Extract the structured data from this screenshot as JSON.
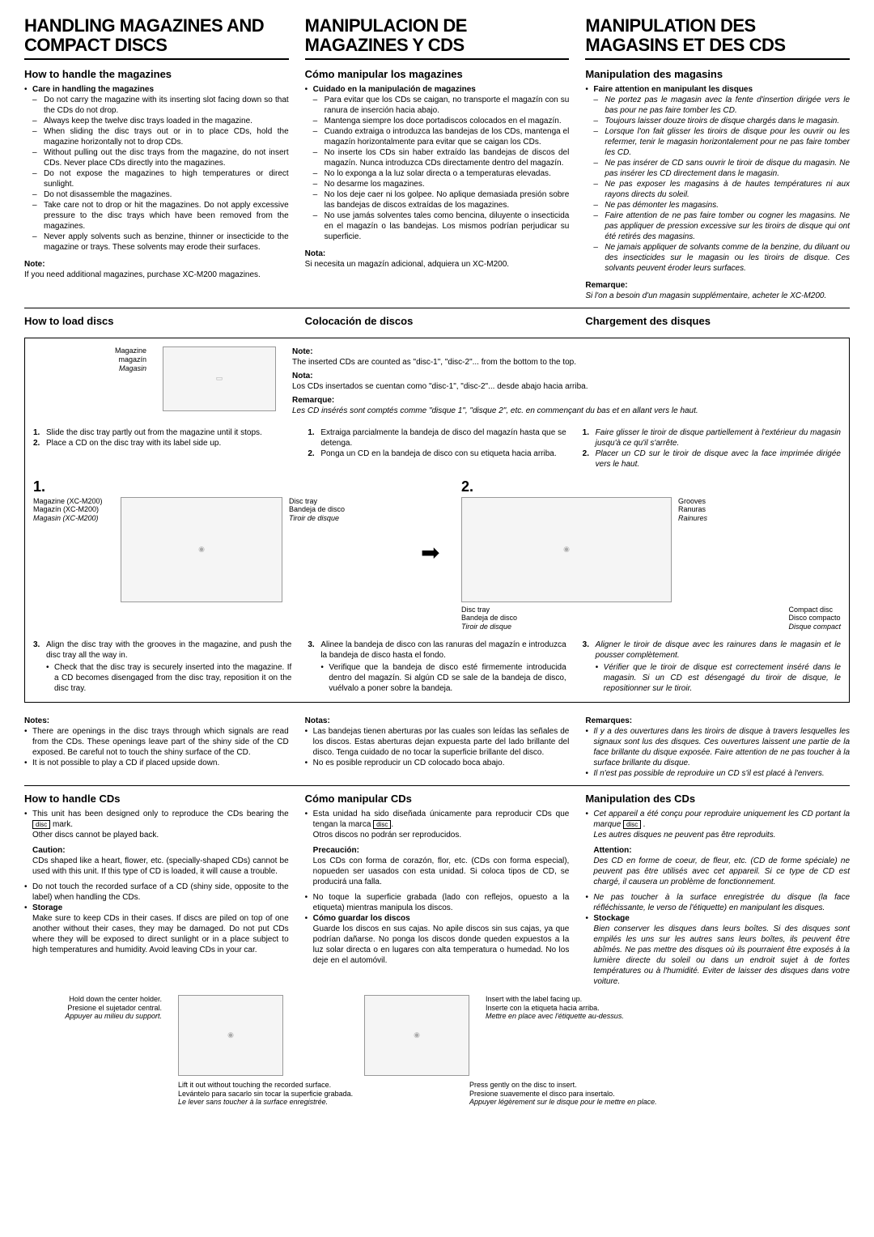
{
  "colors": {
    "text": "#000000",
    "bg": "#ffffff",
    "rule": "#000000"
  },
  "en": {
    "title": "HANDLING MAGAZINES AND COMPACT DISCS",
    "handle_mag_title": "How to handle the magazines",
    "care_label": "Care in handling the magazines",
    "care_items": [
      "Do not carry the magazine with its inserting slot facing down so that the CDs do not drop.",
      "Always keep the twelve disc trays loaded in the magazine.",
      "When sliding the disc trays out or in to place CDs, hold the magazine horizontally not to drop CDs.",
      "Without pulling out the disc trays from the magazine, do not insert CDs. Never place CDs directly into the magazines.",
      "Do not expose the magazines to high temperatures or direct sunlight.",
      "Do not disassemble the magazines.",
      "Take care not to drop or hit the magazines. Do not apply excessive pressure to the disc trays which have been removed from the magazines.",
      "Never apply solvents such as benzine, thinner or insecticide to the magazine or trays. These solvents may erode their surfaces."
    ],
    "note_label": "Note:",
    "note_text": "If you need additional magazines, purchase XC-M200 magazines.",
    "load_title": "How to load discs",
    "insert_note": "The inserted CDs are counted as \"disc-1\", \"disc-2\"... from the bottom to the top.",
    "mag_label": "Magazine",
    "step1": "Slide the disc tray partly out from the magazine until it stops.",
    "step2": "Place a CD on the disc tray with its label side up.",
    "disc_tray": "Disc tray",
    "magazine_xc": "Magazine (XC-M200)",
    "grooves": "Grooves",
    "compact_disc": "Compact disc",
    "step3": "Align the disc tray with the grooves in the magazine, and push the disc tray all the way in.",
    "step3_sub": "Check that the disc tray is securely inserted into the magazine. If a CD becomes disengaged from the disc tray, reposition it on the disc tray.",
    "notes_label": "Notes:",
    "notes_items": [
      "There are openings in the disc trays through which signals are read from the CDs. These openings leave part of the shiny side of the CD exposed. Be careful not to touch the shiny surface of the CD.",
      "It is not possible to play a CD if placed upside down."
    ],
    "handle_cd_title": "How to handle CDs",
    "cd_design": "This unit has been designed only to reproduce the CDs bearing the",
    "cd_mark": "mark.",
    "cd_other": "Other discs cannot be played back.",
    "caution_label": "Caution:",
    "caution_text": "CDs shaped like a heart, flower, etc. (specially-shaped CDs) cannot be used with this unit. If this type of CD is loaded, it will cause a trouble.",
    "surface": "Do not touch the recorded surface of a CD (shiny side, opposite to the label) when handling the CDs.",
    "storage_label": "Storage",
    "storage_text": "Make sure to keep CDs in their cases. If discs are piled on top of one another without their cases, they may be damaged. Do not put CDs where they will be exposed to direct sunlight or in a place subject to high temperatures and humidity. Avoid leaving CDs in your car.",
    "hold_center": "Hold down the center holder.",
    "lift_out": "Lift it out without touching the recorded surface.",
    "insert_label": "Insert with the label facing up.",
    "press_gently": "Press gently on the disc to insert."
  },
  "es": {
    "title": "MANIPULACION DE MAGAZINES Y CDS",
    "handle_mag_title": "Cómo manipular los magazines",
    "care_label": "Cuidado en la manipulación de magazines",
    "care_items": [
      "Para evitar que los CDs se caigan, no transporte el magazín con su ranura de inserción hacia abajo.",
      "Mantenga siempre los doce portadiscos colocados en el magazín.",
      "Cuando extraiga o introduzca las bandejas de los CDs, mantenga el magazín horizontalmente para evitar que se caigan los CDs.",
      "No inserte los CDs sin haber extraído las bandejas de discos del magazín. Nunca introduzca CDs directamente dentro del magazín.",
      "No lo exponga a la luz solar directa o a temperaturas elevadas.",
      "No desarme los magazines.",
      "No los deje caer ni los golpee. No aplique demasiada presión sobre las bandejas de discos extraídas de los magazines.",
      "No use jamás solventes tales como bencina, diluyente o insecticida en el magazín o las bandejas. Los mismos podrían perjudicar su superficie."
    ],
    "note_label": "Nota:",
    "note_text": "Si necesita un magazín adicional, adquiera un XC-M200.",
    "load_title": "Colocación de discos",
    "insert_note": "Los CDs insertados se cuentan como \"disc-1\", \"disc-2\"... desde abajo hacia arriba.",
    "mag_label": "magazín",
    "step1": "Extraiga parcialmente la bandeja de disco del magazín hasta que se detenga.",
    "step2": "Ponga un CD en la bandeja de disco con su etiqueta hacia arriba.",
    "disc_tray": "Bandeja de disco",
    "magazine_xc": "Magazín (XC-M200)",
    "grooves": "Ranuras",
    "compact_disc": "Disco compacto",
    "step3": "Alinee la bandeja de disco con las ranuras del magazín e introduzca la bandeja de disco hasta el fondo.",
    "step3_sub": "Verifique que la bandeja de disco esté firmemente introducida dentro del magazín. Si algún CD se sale de la bandeja de disco, vuélvalo a poner sobre la bandeja.",
    "notes_label": "Notas:",
    "notes_items": [
      "Las bandejas tienen aberturas por las cuales son leídas las señales de los discos. Estas aberturas dejan expuesta parte del lado brillante del disco. Tenga cuidado de no tocar la superficie brillante del disco.",
      "No es posible reproducir un CD colocado boca abajo."
    ],
    "handle_cd_title": "Cómo manipular CDs",
    "cd_design": "Esta unidad ha sido diseñada únicamente para reproducir CDs que tengan la marca",
    "cd_other": "Otros discos no podrán ser reproducidos.",
    "caution_label": "Precaución:",
    "caution_text": "Los CDs con forma de corazón, flor, etc. (CDs con forma especial), nopueden ser uasados con esta unidad. Si coloca tipos de CD, se producirá una falla.",
    "surface": "No toque la superficie grabada (lado con reflejos, opuesto a la etiqueta) mientras manipula los discos.",
    "storage_label": "Cómo guardar los discos",
    "storage_text": "Guarde los discos en sus cajas. No apile discos sin sus cajas, ya que podrían dañarse. No ponga los discos donde queden expuestos a la luz solar directa o en lugares con alta temperatura o humedad. No los deje en el automóvil.",
    "hold_center": "Presione el sujetador central.",
    "lift_out": "Levántelo para sacarlo sin tocar la superficie grabada.",
    "insert_label": "Inserte con la etiqueta hacia arriba.",
    "press_gently": "Presione suavemente el disco para insertalo."
  },
  "fr": {
    "title": "MANIPULATION DES MAGASINS ET DES CDS",
    "handle_mag_title": "Manipulation des magasins",
    "care_label": "Faire attention en manipulant les disques",
    "care_items": [
      "Ne portez pas le magasin avec la fente d'insertion dirigée vers le bas pour ne pas faire tomber les CD.",
      "Toujours laisser douze tiroirs de disque chargés dans le magasin.",
      "Lorsque l'on fait glisser les tiroirs de disque pour les ouvrir ou les refermer, tenir le magasin horizontalement pour ne pas faire tomber les CD.",
      "Ne pas insérer de CD sans ouvrir le tiroir de disque du magasin. Ne pas insérer les CD directement dans le magasin.",
      "Ne pas exposer les magasins à de hautes températures ni aux rayons directs du soleil.",
      "Ne pas démonter les magasins.",
      "Faire attention de ne pas faire tomber ou cogner les magasins. Ne pas appliquer de pression excessive sur les tiroirs de disque qui ont été retirés des magasins.",
      "Ne jamais appliquer de solvants comme de la benzine, du diluant ou des insecticides sur le magasin ou les tiroirs de disque. Ces solvants peuvent éroder leurs surfaces."
    ],
    "note_label": "Remarque:",
    "note_text": "Si l'on a besoin d'un magasin supplémentaire, acheter le XC-M200.",
    "load_title": "Chargement des disques",
    "insert_note": "Les CD insérés sont comptés comme \"disque 1\", \"disque 2\", etc. en commençant du bas et en allant vers le haut.",
    "mag_label": "Magasin",
    "step1": "Faire glisser le tiroir de disque partiellement à l'extérieur du magasin jusqu'à ce qu'il s'arrête.",
    "step2": "Placer un CD sur le tiroir de disque avec la face imprimée dirigée vers le haut.",
    "disc_tray": "Tiroir de disque",
    "magazine_xc": "Magasin (XC-M200)",
    "grooves": "Rainures",
    "compact_disc": "Disque compact",
    "step3": "Aligner le tiroir de disque avec les rainures dans le magasin et le pousser complètement.",
    "step3_sub": "Vérifier que le tiroir de disque est correctement inséré dans le magasin. Si un CD est désengagé du tiroir de disque, le repositionner sur le tiroir.",
    "notes_label": "Remarques:",
    "notes_items": [
      "Il y a des ouvertures dans les tiroirs de disque à travers lesquelles les signaux sont lus des disques. Ces ouvertures laissent une partie de la face brillante du disque exposée. Faire attention de ne pas toucher à la surface brillante du disque.",
      "Il n'est pas possible de reproduire un CD s'il est placé à l'envers."
    ],
    "handle_cd_title": "Manipulation des CDs",
    "cd_design": "Cet appareil a été conçu pour reproduire uniquement les CD portant la marque",
    "cd_other": "Les autres disques ne peuvent pas être reproduits.",
    "caution_label": "Attention:",
    "caution_text": "Des CD en forme de coeur, de fleur, etc. (CD de forme spéciale) ne peuvent pas être utilisés avec cet appareil. Si ce type de CD est chargé, il causera un problème de fonctionnement.",
    "surface": "Ne pas toucher à la surface enregistrée du disque (la face réfléchissante, le verso de l'étiquette) en manipulant les disques.",
    "storage_label": "Stockage",
    "storage_text": "Bien conserver les disques dans leurs boîtes. Si des disques sont empilés les uns sur les autres sans leurs boîtes, ils peuvent être abîmés. Ne pas mettre des disques où ils pourraient être exposés à la lumière directe du soleil ou dans un endroit sujet à de fortes températures ou à l'humidité. Eviter de laisser des disques dans votre voiture.",
    "hold_center": "Appuyer au milieu du support.",
    "lift_out": "Le lever sans toucher à la surface enregistrée.",
    "insert_label": "Mettre en place avec l'étiquette au-dessus.",
    "press_gently": "Appuyer légèrement sur le disque pour le mettre en place."
  }
}
